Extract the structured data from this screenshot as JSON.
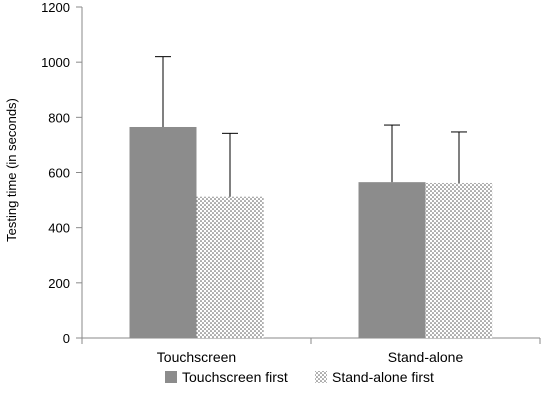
{
  "chart_data": {
    "type": "bar",
    "ylabel": "Testing time (in seconds)",
    "xlabel": "",
    "ylim": [
      0,
      1200
    ],
    "yticks": [
      0,
      200,
      400,
      600,
      800,
      1000,
      1200
    ],
    "categories": [
      "Touchscreen",
      "Stand-alone"
    ],
    "series": [
      {
        "name": "Touchscreen first",
        "values": [
          765,
          565
        ],
        "error_plus": [
          255,
          207
        ],
        "fill": "solid",
        "color": "#8c8c8c"
      },
      {
        "name": "Stand-alone first",
        "values": [
          512,
          562
        ],
        "error_plus": [
          230,
          185
        ],
        "fill": "dotted",
        "color": "#555555"
      }
    ],
    "legend_position": "bottom",
    "grid": false
  }
}
